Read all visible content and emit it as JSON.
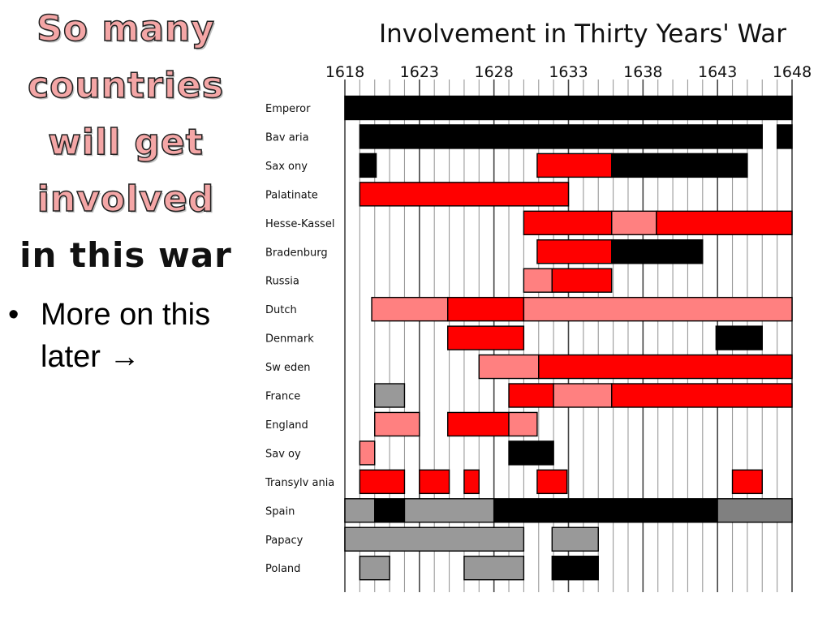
{
  "slide": {
    "title_lines": [
      "So many",
      "countries",
      "will get",
      "involved",
      "in this war"
    ],
    "bullet": {
      "symbol": "•",
      "text": "More on this later",
      "arrow": "→"
    }
  },
  "chart_data": {
    "type": "bar",
    "subtype": "gantt",
    "title": "Involvement in Thirty Years' War",
    "xlim": [
      1618,
      1648
    ],
    "xticks": [
      1618,
      1623,
      1628,
      1633,
      1638,
      1643,
      1648
    ],
    "grid": true,
    "legend": "none",
    "colors": {
      "black": "#000000",
      "red": "#ff0000",
      "pink": "#ff8080",
      "gray": "#999999",
      "darkgray": "#808080"
    },
    "rows": [
      {
        "label": "Emperor",
        "segments": [
          {
            "start": 1618,
            "end": 1648,
            "color": "black"
          }
        ]
      },
      {
        "label": "Bav aria",
        "segments": [
          {
            "start": 1619,
            "end": 1646,
            "color": "black"
          },
          {
            "start": 1647,
            "end": 1648,
            "color": "black"
          }
        ]
      },
      {
        "label": "Sax ony",
        "segments": [
          {
            "start": 1619,
            "end": 1620.1,
            "color": "black"
          },
          {
            "start": 1630.9,
            "end": 1635.9,
            "color": "red"
          },
          {
            "start": 1635.9,
            "end": 1645,
            "color": "black"
          }
        ]
      },
      {
        "label": "Palatinate",
        "segments": [
          {
            "start": 1619,
            "end": 1633,
            "color": "red"
          }
        ]
      },
      {
        "label": "Hesse-Kassel",
        "segments": [
          {
            "start": 1630,
            "end": 1635.9,
            "color": "red"
          },
          {
            "start": 1635.9,
            "end": 1638.9,
            "color": "pink"
          },
          {
            "start": 1638.9,
            "end": 1648,
            "color": "red"
          }
        ]
      },
      {
        "label": "Bradenburg",
        "segments": [
          {
            "start": 1630.9,
            "end": 1635.9,
            "color": "red"
          },
          {
            "start": 1635.9,
            "end": 1642,
            "color": "black"
          }
        ]
      },
      {
        "label": "Russia",
        "segments": [
          {
            "start": 1630,
            "end": 1631.9,
            "color": "pink"
          },
          {
            "start": 1631.9,
            "end": 1635.9,
            "color": "red"
          }
        ]
      },
      {
        "label": "Dutch",
        "segments": [
          {
            "start": 1619.8,
            "end": 1624.9,
            "color": "pink"
          },
          {
            "start": 1624.9,
            "end": 1630,
            "color": "red"
          },
          {
            "start": 1630,
            "end": 1648,
            "color": "pink"
          }
        ]
      },
      {
        "label": "Denmark",
        "segments": [
          {
            "start": 1624.9,
            "end": 1630,
            "color": "red"
          },
          {
            "start": 1642.9,
            "end": 1646,
            "color": "black"
          }
        ]
      },
      {
        "label": "Sw eden",
        "segments": [
          {
            "start": 1627,
            "end": 1631,
            "color": "pink"
          },
          {
            "start": 1631,
            "end": 1648,
            "color": "red"
          }
        ]
      },
      {
        "label": "France",
        "segments": [
          {
            "start": 1620,
            "end": 1622,
            "color": "gray"
          },
          {
            "start": 1629,
            "end": 1632,
            "color": "red"
          },
          {
            "start": 1632,
            "end": 1635.9,
            "color": "pink"
          },
          {
            "start": 1635.9,
            "end": 1648,
            "color": "red"
          }
        ]
      },
      {
        "label": "England",
        "segments": [
          {
            "start": 1620,
            "end": 1623,
            "color": "pink"
          },
          {
            "start": 1624.9,
            "end": 1629,
            "color": "red"
          },
          {
            "start": 1629,
            "end": 1630.9,
            "color": "pink"
          }
        ]
      },
      {
        "label": "Sav oy",
        "segments": [
          {
            "start": 1619,
            "end": 1620,
            "color": "pink"
          },
          {
            "start": 1629,
            "end": 1632,
            "color": "black"
          }
        ]
      },
      {
        "label": "Transylv ania",
        "segments": [
          {
            "start": 1619,
            "end": 1622,
            "color": "red"
          },
          {
            "start": 1623,
            "end": 1625,
            "color": "red"
          },
          {
            "start": 1626,
            "end": 1627,
            "color": "red"
          },
          {
            "start": 1630.9,
            "end": 1632.9,
            "color": "red"
          },
          {
            "start": 1644,
            "end": 1646,
            "color": "red"
          }
        ]
      },
      {
        "label": "Spain",
        "segments": [
          {
            "start": 1618,
            "end": 1620,
            "color": "gray"
          },
          {
            "start": 1620,
            "end": 1622,
            "color": "black"
          },
          {
            "start": 1622,
            "end": 1628,
            "color": "gray"
          },
          {
            "start": 1628,
            "end": 1643,
            "color": "black"
          },
          {
            "start": 1643,
            "end": 1648,
            "color": "darkgray"
          }
        ]
      },
      {
        "label": "Papacy",
        "segments": [
          {
            "start": 1618,
            "end": 1630,
            "color": "gray"
          },
          {
            "start": 1631.9,
            "end": 1635,
            "color": "gray"
          }
        ]
      },
      {
        "label": "Poland",
        "segments": [
          {
            "start": 1619,
            "end": 1621,
            "color": "gray"
          },
          {
            "start": 1626,
            "end": 1630,
            "color": "gray"
          },
          {
            "start": 1631.9,
            "end": 1635,
            "color": "black"
          }
        ]
      }
    ]
  }
}
